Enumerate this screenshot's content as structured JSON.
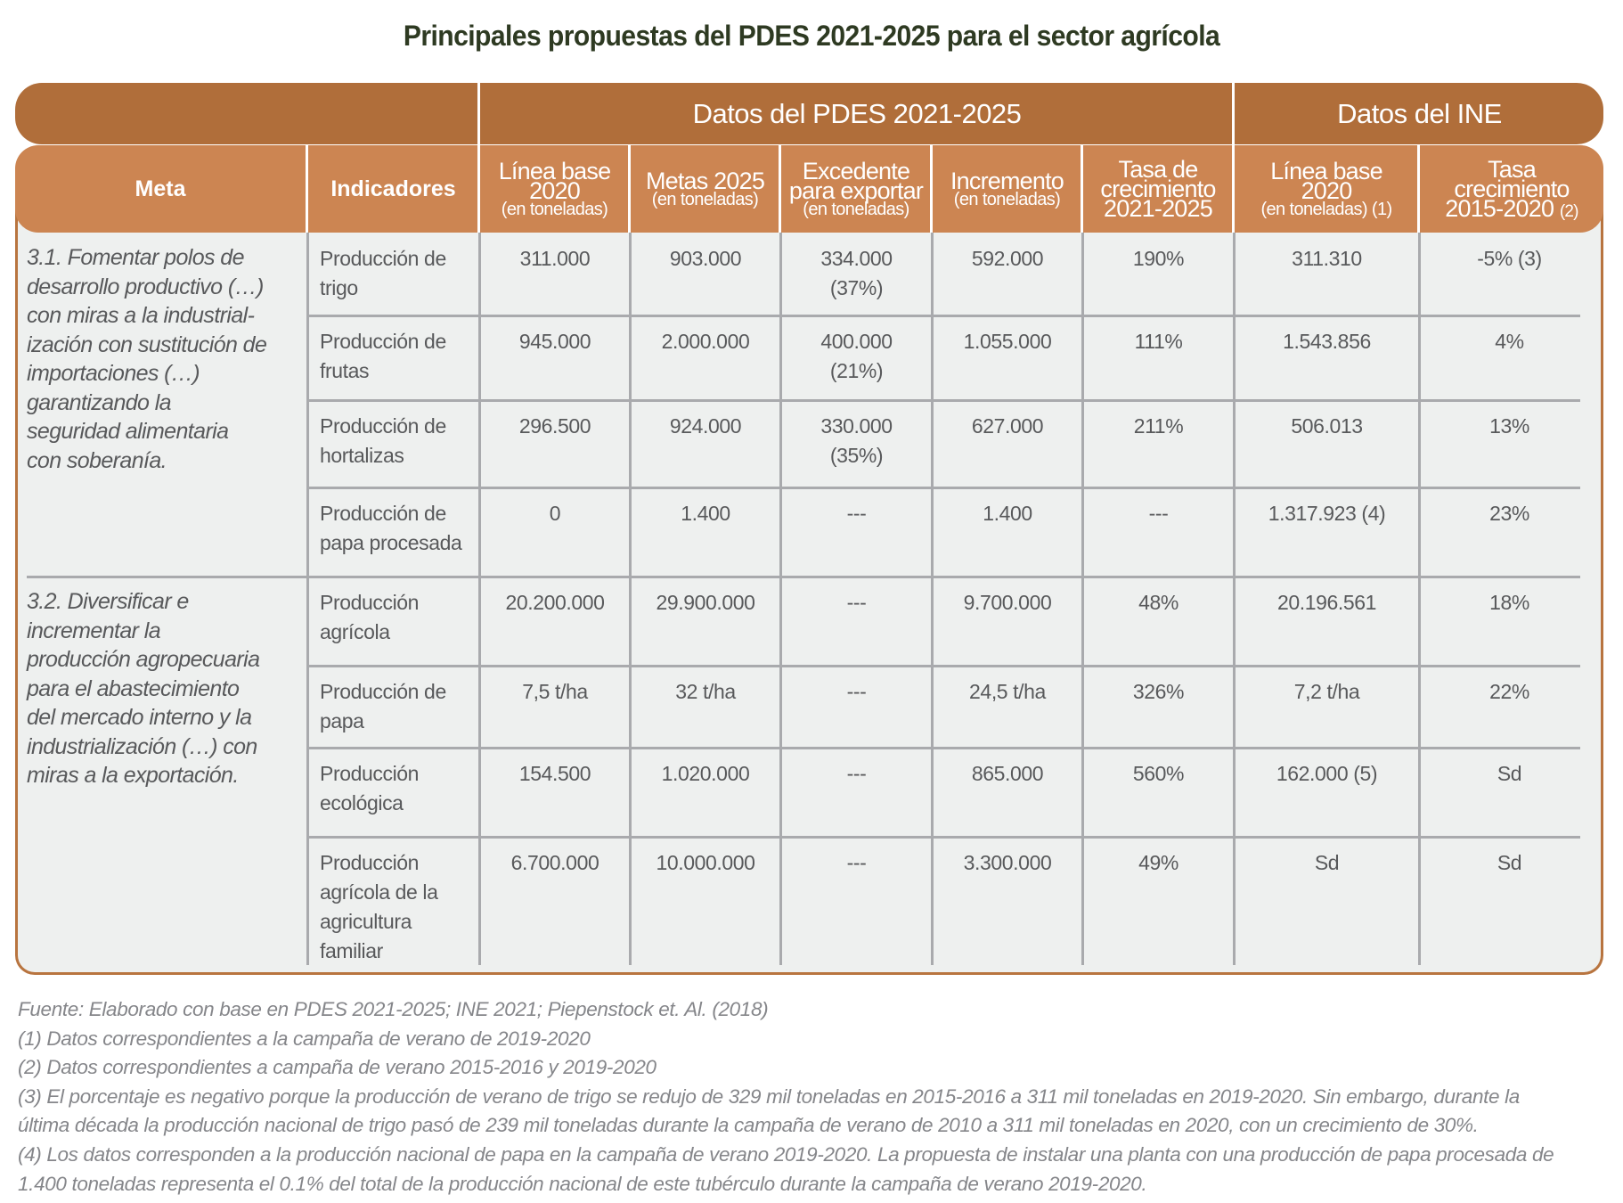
{
  "title": "Principales propuestas del PDES 2021-2025 para el sector agrícola",
  "group_headers": {
    "pdes": "Datos del PDES 2021-2025",
    "ine": "Datos del INE"
  },
  "columns": {
    "meta": "Meta",
    "indicadores": "Indicadores",
    "linea_base": {
      "line1": "Línea base",
      "line2": "2020",
      "unit": "(en toneladas)"
    },
    "metas_2025": {
      "line1": "Metas 2025",
      "unit": "(en toneladas)"
    },
    "excedente": {
      "line1": "Excedente",
      "line2": "para exportar",
      "unit": "(en toneladas)"
    },
    "incremento": {
      "line1": "Incremento",
      "unit": "(en toneladas)"
    },
    "tasa": {
      "line1": "Tasa de",
      "line2": "crecimiento",
      "line3": "2021-2025"
    },
    "ine_linea_base": {
      "line1": "Línea base",
      "line2": "2020",
      "unit": "(en toneladas) (1)"
    },
    "ine_tasa": {
      "line1": "Tasa",
      "line2": "crecimiento",
      "line3": "2015-2020",
      "note": "(2)"
    }
  },
  "metas": [
    {
      "lines": [
        "3.1. Fomentar polos de",
        "desarrollo productivo (…)",
        "con miras a la industrial-",
        "ización con sustitución de",
        "importaciones (…)",
        "garantizando la",
        "seguridad alimentaria",
        "con soberanía."
      ]
    },
    {
      "lines": [
        "3.2. Diversificar e",
        "incrementar la",
        "producción agropecuaria",
        "para el abastecimiento",
        "del mercado interno y la",
        "industrialización (…) con",
        "miras a la exportación."
      ]
    }
  ],
  "rows": [
    {
      "indicador": [
        "Producción de",
        "trigo"
      ],
      "linea_base": "311.000",
      "metas": "903.000",
      "excedente": [
        "334.000",
        "(37%)"
      ],
      "incremento": "592.000",
      "tasa": "190%",
      "ine_base": "311.310",
      "ine_tasa": "-5% (3)"
    },
    {
      "indicador": [
        "Producción de",
        "frutas"
      ],
      "linea_base": "945.000",
      "metas": "2.000.000",
      "excedente": [
        "400.000",
        "(21%)"
      ],
      "incremento": "1.055.000",
      "tasa": "111%",
      "ine_base": "1.543.856",
      "ine_tasa": "4%"
    },
    {
      "indicador": [
        "Producción de",
        "hortalizas"
      ],
      "linea_base": "296.500",
      "metas": "924.000",
      "excedente": [
        "330.000",
        "(35%)"
      ],
      "incremento": "627.000",
      "tasa": "211%",
      "ine_base": "506.013",
      "ine_tasa": "13%"
    },
    {
      "indicador": [
        "Producción de",
        "papa procesada"
      ],
      "linea_base": "0",
      "metas": "1.400",
      "excedente": [
        "---"
      ],
      "incremento": "1.400",
      "tasa": "---",
      "ine_base": "1.317.923 (4)",
      "ine_tasa": "23%"
    },
    {
      "indicador": [
        "Producción",
        "agrícola"
      ],
      "linea_base": "20.200.000",
      "metas": "29.900.000",
      "excedente": [
        "---"
      ],
      "incremento": "9.700.000",
      "tasa": "48%",
      "ine_base": "20.196.561",
      "ine_tasa": "18%"
    },
    {
      "indicador": [
        "Producción de",
        "papa"
      ],
      "linea_base": "7,5 t/ha",
      "metas": "32 t/ha",
      "excedente": [
        "---"
      ],
      "incremento": "24,5 t/ha",
      "tasa": "326%",
      "ine_base": "7,2 t/ha",
      "ine_tasa": "22%"
    },
    {
      "indicador": [
        "Producción",
        "ecológica"
      ],
      "linea_base": "154.500",
      "metas": "1.020.000",
      "excedente": [
        "---"
      ],
      "incremento": "865.000",
      "tasa": "560%",
      "ine_base": "162.000 (5)",
      "ine_tasa": "Sd"
    },
    {
      "indicador": [
        "Producción",
        "agrícola de la",
        "agricultura",
        "familiar"
      ],
      "linea_base": "6.700.000",
      "metas": "10.000.000",
      "excedente": [
        "---"
      ],
      "incremento": "3.300.000",
      "tasa": "49%",
      "ine_base": "Sd",
      "ine_tasa": "Sd"
    }
  ],
  "footnotes": [
    "Fuente: Elaborado con base en PDES 2021-2025; INE 2021; Piepenstock et. Al. (2018)",
    "(1) Datos correspondientes a la campaña de verano de 2019-2020",
    "(2) Datos correspondientes a campaña de verano 2015-2016 y 2019-2020",
    "(3) El porcentaje es negativo porque la producción de verano de trigo se redujo de 329 mil toneladas en 2015-2016 a 311 mil toneladas en 2019-2020. Sin embargo, durante la",
    "última década la producción nacional de trigo pasó de 239 mil toneladas durante la campaña de verano de 2010 a 311 mil toneladas en 2020, con un crecimiento de 30%.",
    "(4) Los datos corresponden a la producción nacional de papa en la campaña de verano 2019-2020. La propuesta de instalar una planta con una producción de papa procesada de",
    "1.400 toneladas representa el 0.1% del total de la producción nacional de este tubérculo durante la campaña de verano 2019-2020."
  ],
  "colors": {
    "band": "#B06E3A",
    "header": "#CC8552",
    "body": "#EEF0EF",
    "grid": "#A9AAAD",
    "title": "#2E3A22"
  }
}
